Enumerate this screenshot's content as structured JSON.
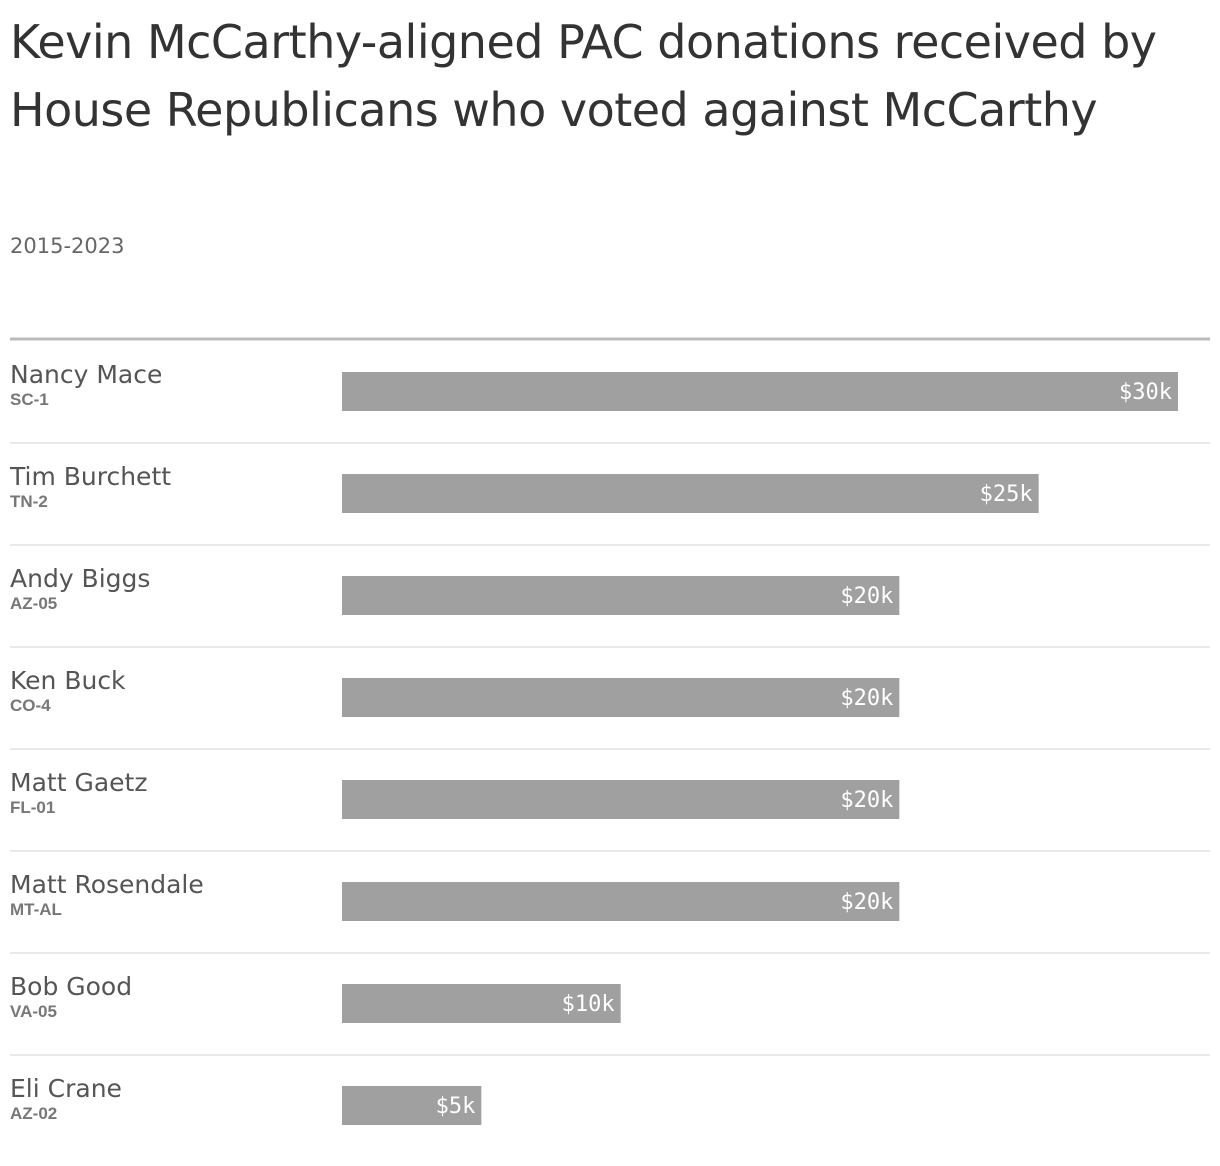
{
  "chart_data": {
    "type": "bar",
    "orientation": "horizontal",
    "title": "Kevin McCarthy-aligned PAC donations received by House Republicans who voted against McCarthy",
    "subtitle": "2015-2023",
    "categories": [
      "Nancy Mace",
      "Tim Burchett",
      "Andy Biggs",
      "Ken Buck",
      "Matt Gaetz",
      "Matt Rosendale",
      "Bob Good",
      "Eli Crane"
    ],
    "sublabels": [
      "SC-1",
      "TN-2",
      "AZ-05",
      "CO-4",
      "FL-01",
      "MT-AL",
      "VA-05",
      "AZ-02"
    ],
    "values": [
      30000,
      25000,
      20000,
      20000,
      20000,
      20000,
      10000,
      5000
    ],
    "value_labels": [
      "$30k",
      "$25k",
      "$20k",
      "$20k",
      "$20k",
      "$20k",
      "$10k",
      "$5k"
    ],
    "color": "#a0a0a0"
  }
}
